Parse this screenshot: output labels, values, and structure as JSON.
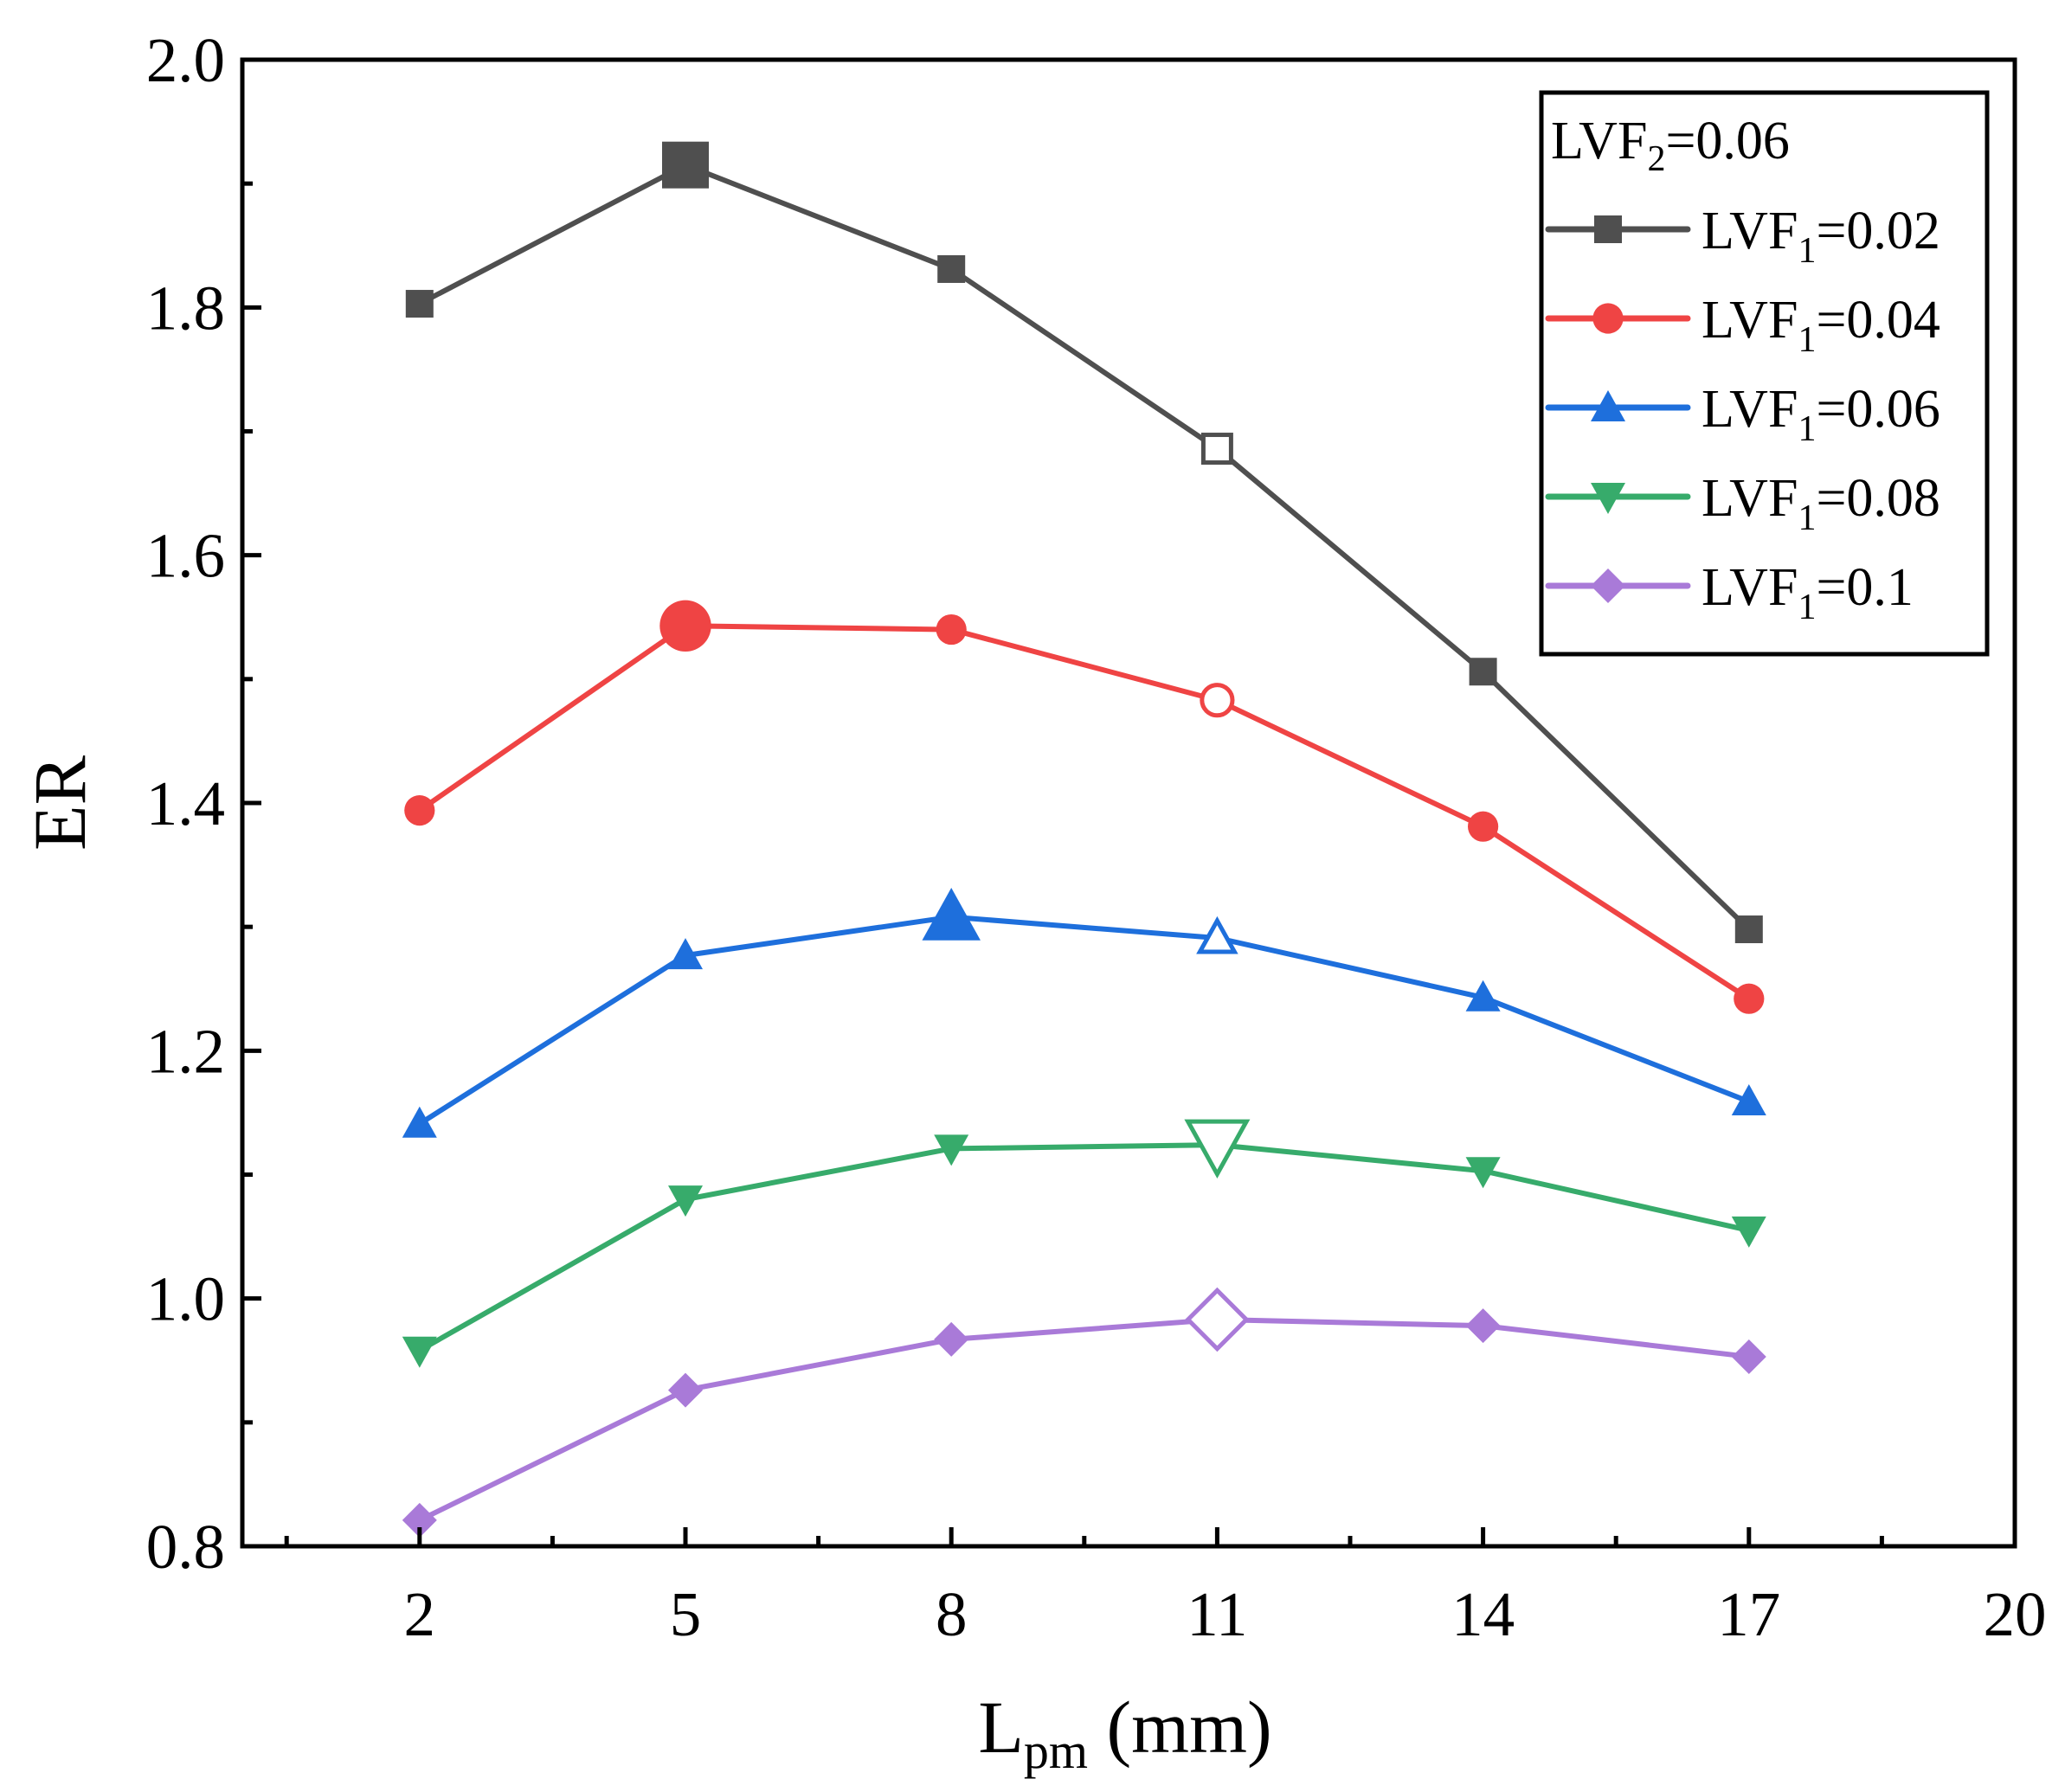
{
  "chart_data": {
    "type": "line",
    "title": "",
    "xlabel": {
      "main": "L",
      "sub": "pm",
      "rest": " (mm)"
    },
    "ylabel": "ER",
    "xlim": [
      0,
      20
    ],
    "ylim": [
      0.8,
      2.0
    ],
    "xticks": [
      2,
      5,
      8,
      11,
      14,
      17,
      20
    ],
    "xtick_labels": [
      "2",
      "5",
      "8",
      "11",
      "14",
      "17",
      "20"
    ],
    "yticks": [
      0.8,
      1.0,
      1.2,
      1.4,
      1.6,
      1.8,
      2.0
    ],
    "ytick_labels": [
      "0.8",
      "1.0",
      "1.2",
      "1.4",
      "1.6",
      "1.8",
      "2.0"
    ],
    "grid": false,
    "legend": {
      "placement": "top-right",
      "title": {
        "main": "LVF",
        "sub": "2",
        "rest": "=0.06"
      }
    },
    "x": [
      2,
      5,
      8,
      11,
      14,
      17
    ],
    "series": [
      {
        "name": "LVF1=0.02",
        "label": {
          "main": "LVF",
          "sub": "1",
          "rest": "=0.02"
        },
        "color": "#4f4f4f",
        "marker": "square",
        "values": [
          1.803,
          1.915,
          1.831,
          1.686,
          1.506,
          1.298
        ],
        "large_index": 1,
        "hollow_index": 3
      },
      {
        "name": "LVF1=0.04",
        "label": {
          "main": "LVF",
          "sub": "1",
          "rest": "=0.04"
        },
        "color": "#ef4444",
        "marker": "circle",
        "values": [
          1.394,
          1.543,
          1.54,
          1.483,
          1.381,
          1.242
        ],
        "large_index": 1,
        "hollow_index": 3
      },
      {
        "name": "LVF1=0.06",
        "label": {
          "main": "LVF",
          "sub": "1",
          "rest": "=0.06"
        },
        "color": "#1e6fdc",
        "marker": "triangle-up",
        "values": [
          1.141,
          1.277,
          1.308,
          1.291,
          1.243,
          1.159
        ],
        "large_index": 2,
        "hollow_index": 3
      },
      {
        "name": "LVF1=0.08",
        "label": {
          "main": "LVF",
          "sub": "1",
          "rest": "=0.08"
        },
        "color": "#37ab6b",
        "marker": "triangle-down",
        "values": [
          0.958,
          1.08,
          1.121,
          1.124,
          1.103,
          1.055
        ],
        "large_index": 3,
        "hollow_index": 3
      },
      {
        "name": "LVF1=0.1",
        "label": {
          "main": "LVF",
          "sub": "1",
          "rest": "=0.1"
        },
        "color": "#a97ad8",
        "marker": "diamond",
        "values": [
          0.821,
          0.926,
          0.967,
          0.983,
          0.978,
          0.953
        ],
        "large_index": 3,
        "hollow_index": 3
      }
    ]
  }
}
